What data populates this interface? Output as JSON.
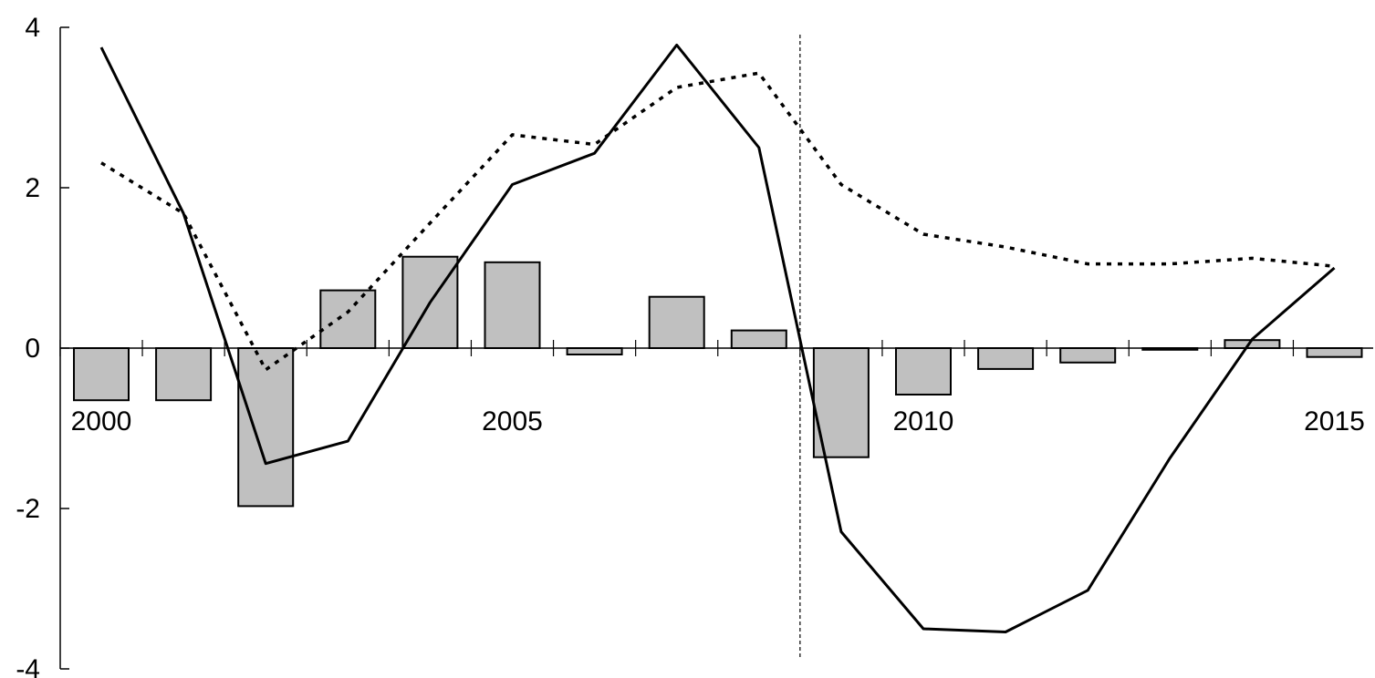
{
  "chart_data": {
    "type": "bar",
    "x": [
      2000,
      2001,
      2002,
      2003,
      2004,
      2005,
      2006,
      2007,
      2008,
      2009,
      2010,
      2011,
      2012,
      2013,
      2014,
      2015
    ],
    "ylim": [
      -4,
      4
    ],
    "yticks": [
      4,
      2,
      0,
      -2,
      -4
    ],
    "ytick_labels": [
      "4",
      "2",
      "0",
      "-2",
      "-4"
    ],
    "xtick_labels": [
      {
        "x": 2000,
        "label": "2000"
      },
      {
        "x": 2005,
        "label": "2005"
      },
      {
        "x": 2010,
        "label": "2010"
      },
      {
        "x": 2015,
        "label": "2015"
      }
    ],
    "vline_x": 2008.5,
    "grid": false,
    "series": [
      {
        "kind": "bar",
        "color": "#c0c0c0",
        "values": [
          -0.65,
          -0.65,
          -1.97,
          0.72,
          1.14,
          1.07,
          -0.08,
          0.64,
          0.22,
          -1.36,
          -0.58,
          -0.26,
          -0.18,
          -0.02,
          0.1,
          -0.11
        ]
      },
      {
        "kind": "line",
        "style": "solid",
        "color": "#000000",
        "values": [
          3.75,
          1.68,
          -1.44,
          -1.16,
          0.57,
          2.04,
          2.43,
          3.78,
          2.5,
          -2.29,
          -3.5,
          -3.54,
          -3.02,
          -1.37,
          0.11,
          1.0
        ]
      },
      {
        "kind": "line",
        "style": "dotted",
        "color": "#000000",
        "values": [
          2.31,
          1.68,
          -0.27,
          0.45,
          1.56,
          2.66,
          2.54,
          3.25,
          3.43,
          2.04,
          1.42,
          1.26,
          1.05,
          1.05,
          1.12,
          1.02
        ]
      }
    ]
  }
}
